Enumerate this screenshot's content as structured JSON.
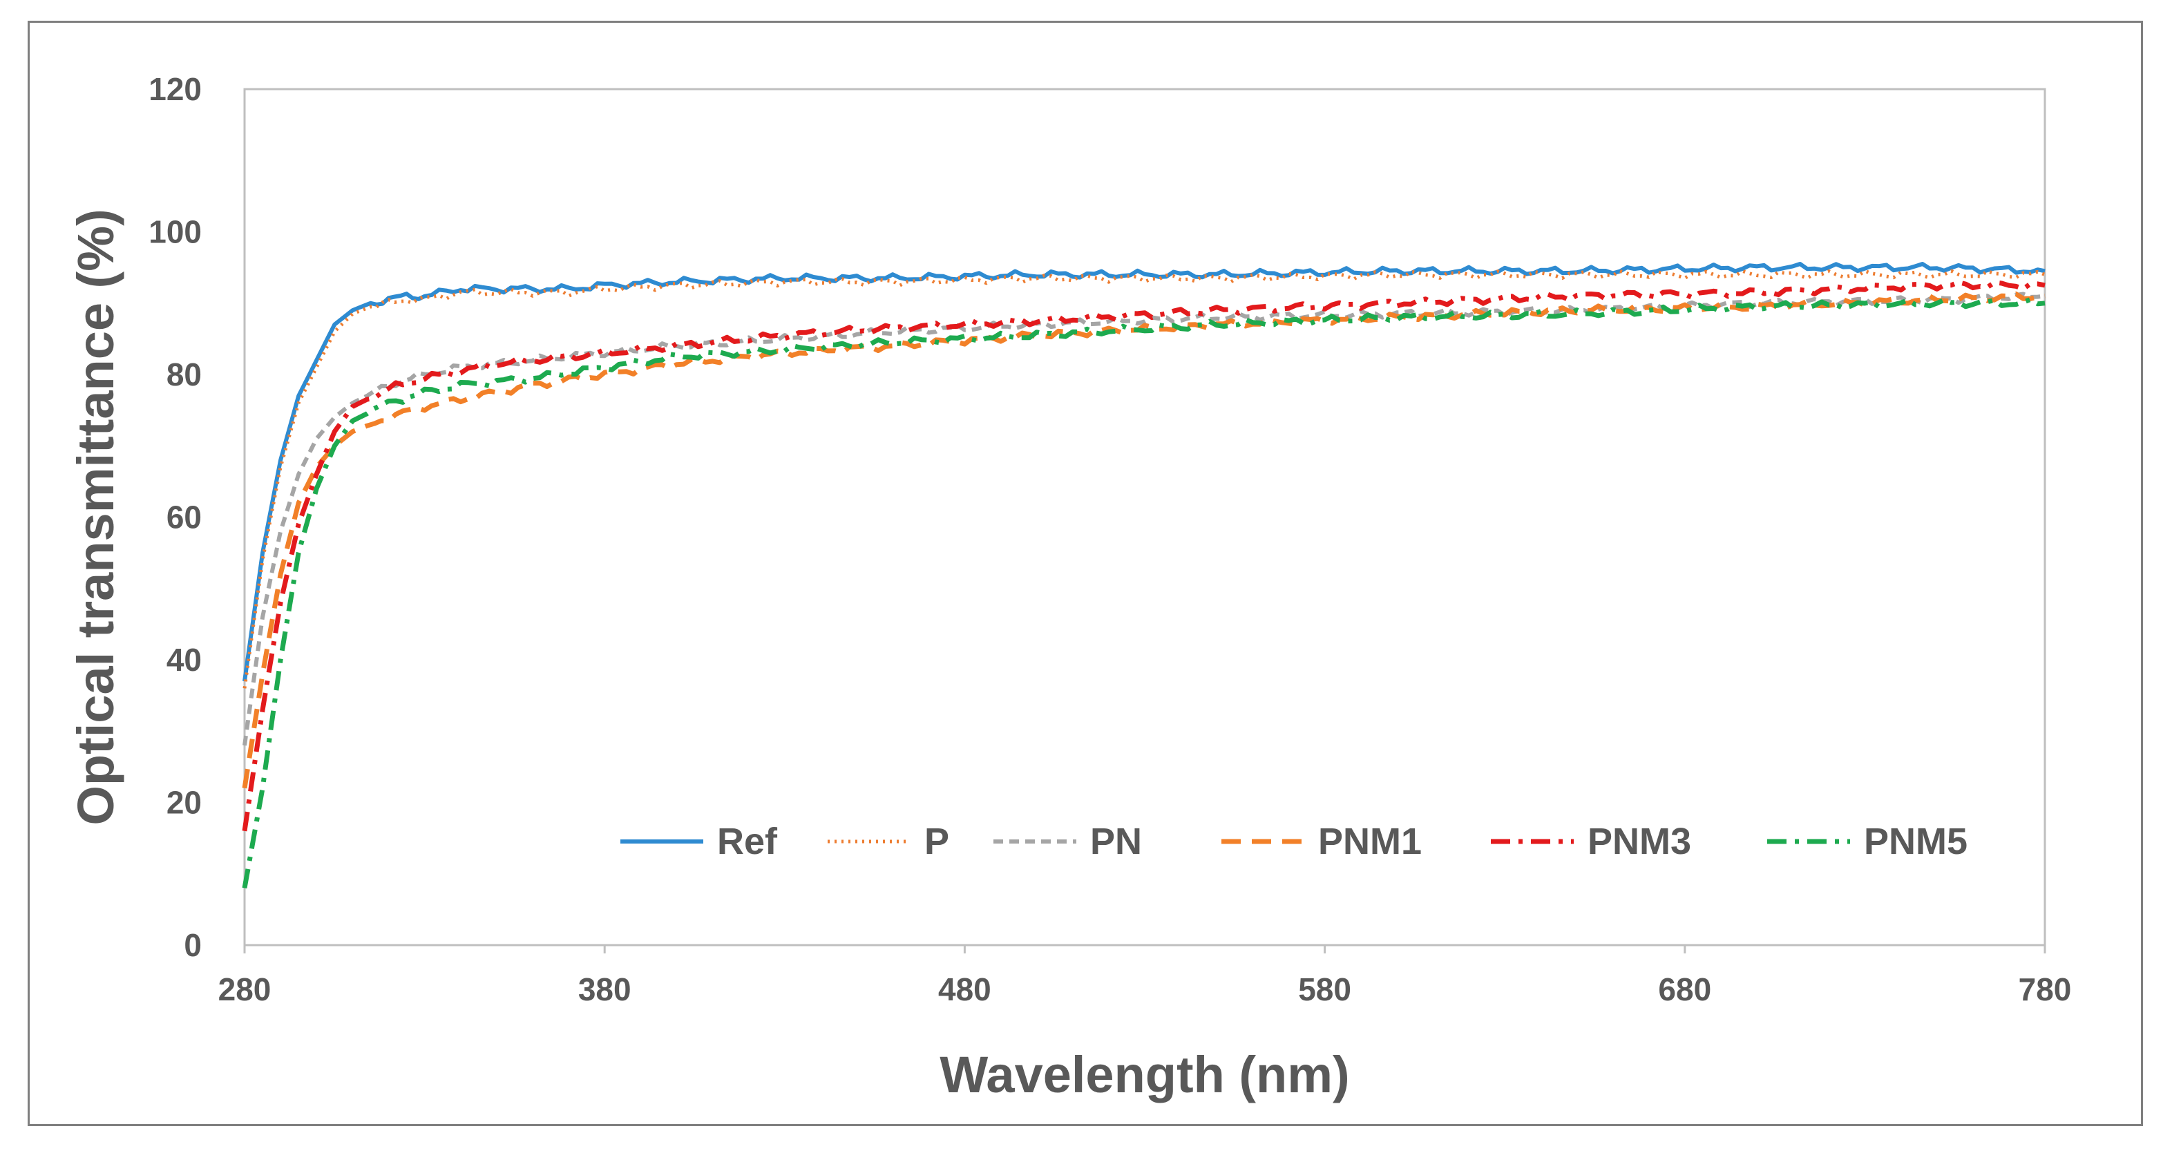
{
  "chart_data": {
    "type": "line",
    "title": "",
    "xlabel": "Wavelength (nm)",
    "ylabel": "Optical transmittance (%)",
    "xlim": [
      280,
      780
    ],
    "ylim": [
      0,
      120
    ],
    "xticks": [
      280,
      380,
      480,
      580,
      680,
      780
    ],
    "yticks": [
      0,
      20,
      40,
      60,
      80,
      100,
      120
    ],
    "grid": false,
    "legend_position": "bottom-right inside",
    "series": [
      {
        "name": "Ref",
        "color": "#2E8BD1",
        "dash": "solid",
        "x": [
          280,
          285,
          290,
          295,
          300,
          305,
          310,
          315,
          320,
          325,
          330,
          340,
          350,
          360,
          370,
          380,
          400,
          430,
          460,
          500,
          550,
          600,
          650,
          700,
          750,
          780
        ],
        "y": [
          37,
          55,
          68,
          77,
          82,
          87,
          89,
          90,
          90.5,
          91,
          91,
          92,
          92,
          92,
          92,
          92.5,
          93,
          93.5,
          93.5,
          94,
          94,
          94.5,
          94.5,
          95,
          95,
          94.5
        ]
      },
      {
        "name": "P",
        "color": "#ED7D31",
        "dash": "dotted",
        "x": [
          280,
          285,
          290,
          295,
          300,
          305,
          310,
          315,
          320,
          325,
          330,
          340,
          350,
          360,
          370,
          380,
          400,
          430,
          460,
          500,
          550,
          600,
          650,
          700,
          750,
          780
        ],
        "y": [
          36,
          54,
          67,
          76,
          81,
          86,
          88.5,
          89.5,
          90,
          90.5,
          90.5,
          91.5,
          91.5,
          91.5,
          91.5,
          92,
          92.5,
          93,
          93,
          93.5,
          93.5,
          94,
          94,
          94,
          94,
          94
        ]
      },
      {
        "name": "PN",
        "color": "#A5A5A5",
        "dash": "dashed",
        "x": [
          280,
          285,
          290,
          295,
          300,
          305,
          310,
          320,
          330,
          340,
          350,
          360,
          380,
          400,
          430,
          460,
          500,
          550,
          600,
          650,
          700,
          750,
          780
        ],
        "y": [
          28,
          46,
          58,
          66,
          71,
          74,
          76,
          78.5,
          80,
          81,
          81.5,
          82,
          83,
          84,
          85,
          86,
          87,
          88,
          88.5,
          89,
          90,
          90.5,
          91
        ]
      },
      {
        "name": "PNM1",
        "color": "#F28028",
        "dash": "long-dash",
        "x": [
          280,
          285,
          290,
          295,
          300,
          305,
          310,
          320,
          330,
          340,
          350,
          360,
          380,
          400,
          430,
          460,
          500,
          550,
          600,
          650,
          700,
          750,
          780
        ],
        "y": [
          22,
          38,
          52,
          62,
          67,
          70,
          72,
          74,
          75.5,
          76.5,
          77.5,
          78.5,
          80,
          81.5,
          83,
          84,
          85.5,
          87,
          88,
          89,
          89.5,
          90.5,
          91
        ]
      },
      {
        "name": "PNM3",
        "color": "#E31A1C",
        "dash": "dash-dot",
        "x": [
          280,
          285,
          290,
          295,
          300,
          305,
          310,
          320,
          330,
          340,
          350,
          360,
          380,
          400,
          430,
          460,
          500,
          550,
          600,
          650,
          700,
          750,
          780
        ],
        "y": [
          16,
          33,
          48,
          59,
          66,
          72,
          75.5,
          78,
          79.5,
          80.5,
          81.5,
          82,
          83,
          84,
          85.5,
          86.5,
          87.5,
          89,
          90,
          91,
          91.5,
          92.5,
          92.5
        ]
      },
      {
        "name": "PNM5",
        "color": "#1DAA4F",
        "dash": "dash-dot",
        "x": [
          280,
          285,
          290,
          295,
          300,
          305,
          310,
          320,
          330,
          340,
          350,
          360,
          380,
          400,
          430,
          460,
          500,
          550,
          600,
          650,
          700,
          750,
          780
        ],
        "y": [
          8,
          22,
          40,
          55,
          64,
          70,
          73.5,
          76,
          77.5,
          78.5,
          79,
          79.5,
          81,
          82.5,
          83.5,
          84.5,
          85.5,
          87,
          88,
          88.5,
          89.5,
          90,
          90
        ]
      }
    ]
  }
}
